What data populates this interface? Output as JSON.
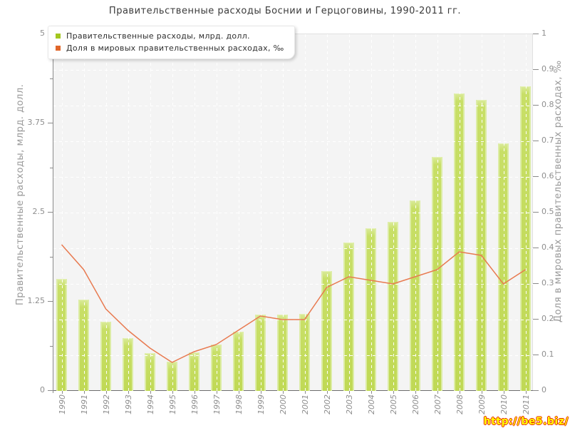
{
  "title": "Правительственные расходы Боснии и Герцоговины, 1990-2011 гг.",
  "legend": {
    "items": [
      {
        "label": "Правительственные расходы, млрд. долл.",
        "color": "#a3c71f"
      },
      {
        "label": "Доля в мировых правительственных расходах, ‰",
        "color": "#e0662a"
      }
    ]
  },
  "watermark": {
    "text": "http://be5.biz/"
  },
  "axes": {
    "left": {
      "title": "Правительственные расходы, млрд. долл.",
      "tick_labels": [
        "0",
        "1.25",
        "2.5",
        "3.75",
        "5"
      ],
      "tick_values": [
        0,
        1.25,
        2.5,
        3.75,
        5
      ],
      "minor_tick_values": [
        0.625,
        1.875,
        3.125,
        4.375
      ],
      "range": [
        0,
        5
      ]
    },
    "right": {
      "title": "Доля в мировых правительственных расходах, ‰",
      "tick_labels": [
        "0",
        "0.1",
        "0.2",
        "0.3",
        "0.4",
        "0.5",
        "0.6",
        "0.7",
        "0.8",
        "0.9",
        "1"
      ],
      "tick_values": [
        0,
        0.1,
        0.2,
        0.3,
        0.4,
        0.5,
        0.6,
        0.7,
        0.8,
        0.9,
        1
      ],
      "range": [
        0,
        1
      ]
    },
    "x": {
      "labels": [
        "1990",
        "1991",
        "1992",
        "1993",
        "1994",
        "1995",
        "1996",
        "1997",
        "1998",
        "1999",
        "2000",
        "2001",
        "2002",
        "2003",
        "2004",
        "2005",
        "2006",
        "2007",
        "2008",
        "2009",
        "2010",
        "2011"
      ]
    }
  },
  "chart_data": {
    "type": "bar+line",
    "title": "Правительственные расходы Боснии и Герцоговины, 1990-2011 гг.",
    "categories": [
      "1990",
      "1991",
      "1992",
      "1993",
      "1994",
      "1995",
      "1996",
      "1997",
      "1998",
      "1999",
      "2000",
      "2001",
      "2002",
      "2003",
      "2004",
      "2005",
      "2006",
      "2007",
      "2008",
      "2009",
      "2010",
      "2011"
    ],
    "series": [
      {
        "name": "Правительственные расходы, млрд. долл.",
        "type": "bar",
        "axis": "left",
        "color": "#c5dd60",
        "values": [
          1.57,
          1.28,
          0.97,
          0.74,
          0.53,
          0.41,
          0.54,
          0.65,
          0.83,
          1.07,
          1.07,
          1.08,
          1.68,
          2.08,
          2.28,
          2.37,
          2.67,
          3.28,
          4.17,
          4.08,
          3.47,
          4.27
        ]
      },
      {
        "name": "Доля в мировых правительственных расходах, ‰",
        "type": "line",
        "axis": "right",
        "color": "#e87a50",
        "values": [
          0.41,
          0.34,
          0.23,
          0.17,
          0.12,
          0.08,
          0.11,
          0.13,
          0.17,
          0.21,
          0.2,
          0.2,
          0.29,
          0.32,
          0.31,
          0.3,
          0.32,
          0.34,
          0.39,
          0.38,
          0.3,
          0.34
        ]
      }
    ],
    "left_ylim": [
      0,
      5
    ],
    "right_ylim": [
      0,
      1
    ],
    "grid": true,
    "legend_position": "top-left"
  }
}
